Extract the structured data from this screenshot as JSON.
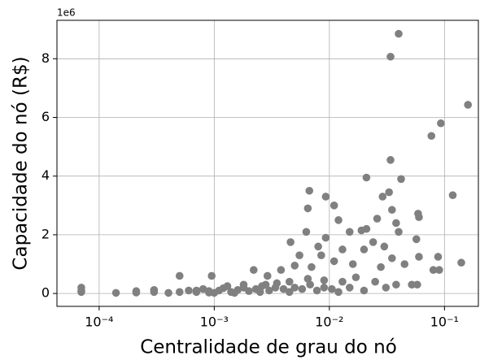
{
  "chart_data": {
    "type": "scatter",
    "xlabel": "Centralidade de grau do nó",
    "ylabel": "Capacidade do nó (R$)",
    "y_offset_label": "1e6",
    "xscale": "log",
    "grid": true,
    "color": "#808080",
    "xlim": [
      4.3e-05,
      0.197
    ],
    "ylim": [
      -0.44,
      9.31
    ],
    "xticks": [
      {
        "value": 0.0001,
        "label": "10⁻⁴"
      },
      {
        "value": 0.001,
        "label": "10⁻³"
      },
      {
        "value": 0.01,
        "label": "10⁻²"
      },
      {
        "value": 0.1,
        "label": "10⁻¹"
      }
    ],
    "yticks": [
      0,
      2,
      4,
      6,
      8
    ],
    "x": [
      0.04,
      0.034,
      0.16,
      0.093,
      0.077,
      0.034,
      0.042,
      0.021,
      0.118,
      0.0067,
      0.0093,
      0.033,
      0.029,
      0.035,
      0.011,
      0.0065,
      0.059,
      0.06,
      0.026,
      0.038,
      0.012,
      0.021,
      0.019,
      0.0063,
      0.0046,
      0.0093,
      0.015,
      0.04,
      0.057,
      0.008,
      0.024,
      0.0055,
      0.0085,
      0.013,
      0.03,
      0.02,
      0.06,
      0.088,
      0.14,
      0.08,
      0.09,
      0.045,
      0.035,
      0.028,
      0.016,
      0.011,
      0.007,
      0.005,
      0.0038,
      0.0029,
      0.0022,
      0.00095,
      0.0005,
      0.031,
      0.038,
      0.052,
      0.058,
      0.025,
      0.017,
      0.013,
      0.009,
      0.0065,
      0.0045,
      0.0035,
      0.0028,
      0.0018,
      0.0013,
      7e-05,
      7e-05,
      7e-05,
      0.00014,
      0.00021,
      0.00021,
      0.0003,
      0.0003,
      0.0004,
      0.0005,
      0.0006,
      0.0007,
      0.0008,
      0.0009,
      0.001,
      0.0011,
      0.0012,
      0.0014,
      0.0016,
      0.0018,
      0.002,
      0.0023,
      0.0026,
      0.003,
      0.0034,
      0.004,
      0.0045,
      0.005,
      0.0058,
      0.0068,
      0.0078,
      0.009,
      0.0105,
      0.012,
      0.015,
      0.02,
      0.0025,
      0.0015,
      0.0009,
      0.0007
    ],
    "values": [
      8.85,
      8.07,
      6.43,
      5.8,
      5.37,
      4.55,
      3.9,
      3.95,
      3.35,
      3.5,
      3.3,
      3.45,
      3.3,
      2.85,
      3.0,
      2.9,
      2.72,
      2.6,
      2.55,
      2.4,
      2.5,
      2.2,
      2.15,
      2.1,
      1.75,
      1.9,
      2.1,
      2.1,
      1.85,
      1.6,
      1.75,
      1.3,
      1.3,
      1.5,
      1.6,
      1.5,
      1.25,
      1.25,
      1.05,
      0.8,
      0.8,
      1.0,
      1.2,
      0.9,
      1.0,
      1.1,
      0.9,
      0.95,
      0.8,
      0.6,
      0.8,
      0.6,
      0.6,
      0.2,
      0.3,
      0.3,
      0.3,
      0.4,
      0.55,
      0.4,
      0.45,
      0.5,
      0.4,
      0.35,
      0.3,
      0.3,
      0.25,
      0.2,
      0.05,
      0.1,
      0.02,
      0.03,
      0.08,
      0.05,
      0.12,
      0.02,
      0.05,
      0.1,
      0.05,
      0.15,
      0.08,
      0.02,
      0.1,
      0.18,
      0.05,
      0.12,
      0.2,
      0.08,
      0.15,
      0.25,
      0.1,
      0.2,
      0.15,
      0.05,
      0.2,
      0.15,
      0.3,
      0.1,
      0.2,
      0.15,
      0.05,
      0.2,
      0.1,
      0.05,
      0.02,
      0.03,
      0.1
    ]
  }
}
